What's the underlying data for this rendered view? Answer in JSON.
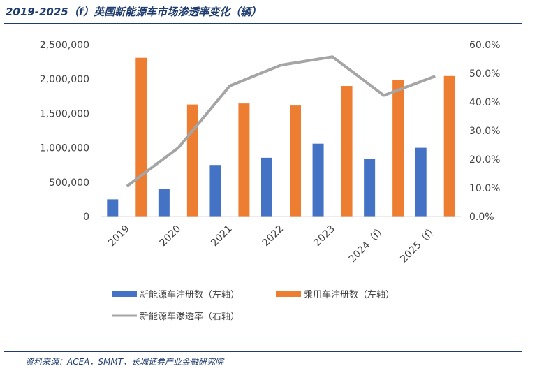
{
  "header": {
    "title": "2019-2025（f）英国新能源车市场渗透率变化（辆）"
  },
  "footer": {
    "source": "资料来源：ACEA，SMMT，长城证券产业金融研究院"
  },
  "chart_data": {
    "type": "bar",
    "categories": [
      "2019",
      "2020",
      "2021",
      "2022",
      "2023",
      "2024（f）",
      "2025（f）"
    ],
    "series": [
      {
        "name": "新能源车注册数（左轴）",
        "type": "bar",
        "axis": "left",
        "color": "#4472c4",
        "values": [
          250000,
          400000,
          750000,
          855000,
          1060000,
          840000,
          1000000
        ]
      },
      {
        "name": "乘用车注册数（左轴）",
        "type": "bar",
        "axis": "left",
        "color": "#ed7d31",
        "values": [
          2310000,
          1630000,
          1645000,
          1615000,
          1900000,
          1985000,
          2045000
        ]
      },
      {
        "name": "新能源车渗透率（右轴）",
        "type": "line",
        "axis": "right",
        "color": "#a5a5a5",
        "values": [
          10.6,
          24.0,
          45.6,
          52.9,
          55.8,
          42.3,
          49.0
        ]
      }
    ],
    "left_axis": {
      "ylim": [
        0,
        2500000
      ],
      "ticks": [
        "0",
        "500,000",
        "1,000,000",
        "1,500,000",
        "2,000,000",
        "2,500,000"
      ]
    },
    "right_axis": {
      "ylim": [
        0,
        60
      ],
      "unit": "%",
      "ticks": [
        "0.0%",
        "10.0%",
        "20.0%",
        "30.0%",
        "40.0%",
        "50.0%",
        "60.0%"
      ]
    },
    "grid": false,
    "legend_placement": "bottom"
  }
}
